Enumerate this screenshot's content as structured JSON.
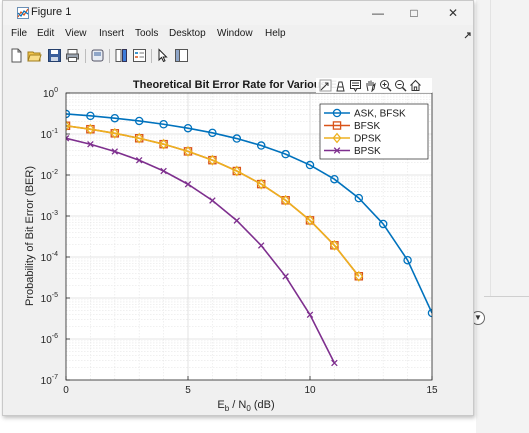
{
  "window": {
    "title": "Figure 1",
    "minimize_glyph": "—",
    "maximize_glyph": "□",
    "close_glyph": "✕"
  },
  "menu": [
    "File",
    "Edit",
    "View",
    "Insert",
    "Tools",
    "Desktop",
    "Window",
    "Help"
  ],
  "toolbar_icons": [
    "new-figure-icon",
    "open-file-icon",
    "save-icon",
    "print-icon",
    "link-plot-icon",
    "insert-colorbar-icon",
    "insert-legend-icon",
    "edit-plot-icon",
    "property-inspector-icon"
  ],
  "axes_toolbar_icons": [
    "export-icon",
    "brush-icon",
    "data-tips-icon",
    "pan-icon",
    "zoom-in-icon",
    "zoom-out-icon",
    "home-icon"
  ],
  "chart_data": {
    "type": "line",
    "title": "Theoretical Bit Error Rate for Various E",
    "xlabel": "Eb / N0 (dB)",
    "ylabel": "Probability of Bit Error (BER)",
    "xlim": [
      0,
      15
    ],
    "ylim": [
      1e-07,
      1
    ],
    "yscale": "log",
    "grid": true,
    "legend_position": "top-right",
    "x_ticks": [
      "0",
      "5",
      "10",
      "15"
    ],
    "y_ticks": [
      "10^0",
      "10^-1",
      "10^-2",
      "10^-3",
      "10^-4",
      "10^-5",
      "10^-6",
      "10^-7"
    ],
    "series": [
      {
        "name": "ASK, BFSK",
        "color": "#0072bd",
        "marker": "circle",
        "x": [
          0,
          1,
          2,
          3,
          4,
          5,
          6,
          7,
          8,
          9,
          10,
          11,
          12,
          13,
          14,
          15
        ],
        "y": [
          0.3085,
          0.2771,
          0.2429,
          0.2079,
          0.1728,
          0.1385,
          0.1068,
          0.0775,
          0.0523,
          0.0322,
          0.0175,
          0.00789,
          0.00273,
          0.00064,
          8.35e-05,
          4.3e-06
        ]
      },
      {
        "name": "BFSK",
        "color": "#d95319",
        "marker": "square",
        "x": [
          0,
          1,
          2,
          3,
          4,
          5,
          6,
          7,
          8,
          9,
          10,
          11,
          12
        ],
        "y": [
          0.1587,
          0.1309,
          0.104,
          0.0788,
          0.0565,
          0.0377,
          0.023,
          0.0125,
          0.006,
          0.00242,
          0.000783,
          0.000193,
          3.39e-05
        ]
      },
      {
        "name": "DPSK",
        "color": "#edb120",
        "marker": "diamond",
        "x": [
          0,
          1,
          2,
          3,
          4,
          5,
          6,
          7,
          8,
          9,
          10,
          11,
          12
        ],
        "y": [
          0.1587,
          0.1309,
          0.104,
          0.0788,
          0.0565,
          0.0377,
          0.023,
          0.0125,
          0.006,
          0.00242,
          0.000783,
          0.000193,
          3.39e-05
        ]
      },
      {
        "name": "BPSK",
        "color": "#7e2f8e",
        "marker": "x",
        "x": [
          0,
          1,
          2,
          3,
          4,
          5,
          6,
          7,
          8,
          9,
          10,
          11
        ],
        "y": [
          0.0786,
          0.0563,
          0.0375,
          0.0229,
          0.0125,
          0.00595,
          0.00239,
          0.000773,
          0.000191,
          3.36e-05,
          3.9e-06,
          2.6e-07
        ]
      }
    ]
  }
}
